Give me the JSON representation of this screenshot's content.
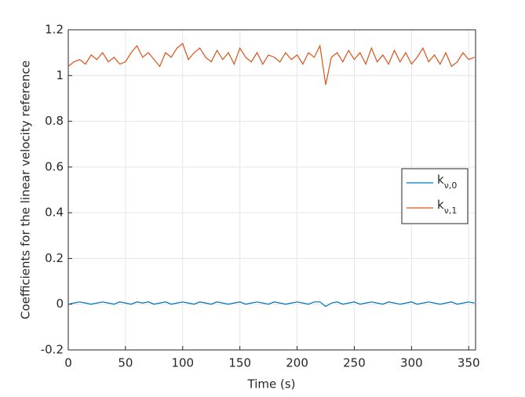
{
  "chart_data": {
    "type": "line",
    "xlabel": "Time (s)",
    "ylabel": "Coefficients for the linear velocity reference",
    "x": [
      0,
      5,
      10,
      15,
      20,
      25,
      30,
      35,
      40,
      45,
      50,
      55,
      60,
      65,
      70,
      75,
      80,
      85,
      90,
      95,
      100,
      105,
      110,
      115,
      120,
      125,
      130,
      135,
      140,
      145,
      150,
      155,
      160,
      165,
      170,
      175,
      180,
      185,
      190,
      195,
      200,
      205,
      210,
      215,
      220,
      225,
      230,
      235,
      240,
      245,
      250,
      255,
      260,
      265,
      270,
      275,
      280,
      285,
      290,
      295,
      300,
      305,
      310,
      315,
      320,
      325,
      330,
      335,
      340,
      345,
      350,
      355
    ],
    "series": [
      {
        "name": "kν,0",
        "color": "#0072bd",
        "values": [
          0,
          0.005,
          0.01,
          0.005,
          0,
          0.005,
          0.01,
          0.005,
          0,
          0.01,
          0.005,
          0,
          0.01,
          0.005,
          0.01,
          0,
          0.005,
          0.01,
          0,
          0.005,
          0.01,
          0.005,
          0,
          0.01,
          0.005,
          0,
          0.01,
          0.005,
          0,
          0.005,
          0.01,
          0,
          0.005,
          0.01,
          0.005,
          0,
          0.01,
          0.005,
          0,
          0.005,
          0.01,
          0.005,
          0,
          0.01,
          0.01,
          -0.01,
          0.005,
          0.01,
          0,
          0.005,
          0.01,
          0,
          0.005,
          0.01,
          0.005,
          0,
          0.01,
          0.005,
          0,
          0.005,
          0.01,
          0,
          0.005,
          0.01,
          0.005,
          0,
          0.005,
          0.01,
          0,
          0.005,
          0.01,
          0.005
        ]
      },
      {
        "name": "kν,1",
        "color": "#d95319",
        "values": [
          1.04,
          1.06,
          1.07,
          1.05,
          1.09,
          1.07,
          1.1,
          1.06,
          1.08,
          1.05,
          1.06,
          1.1,
          1.13,
          1.08,
          1.1,
          1.07,
          1.04,
          1.1,
          1.08,
          1.12,
          1.14,
          1.07,
          1.1,
          1.12,
          1.08,
          1.06,
          1.11,
          1.07,
          1.1,
          1.05,
          1.12,
          1.08,
          1.06,
          1.1,
          1.05,
          1.09,
          1.08,
          1.06,
          1.1,
          1.07,
          1.09,
          1.05,
          1.1,
          1.08,
          1.13,
          0.96,
          1.08,
          1.1,
          1.06,
          1.11,
          1.07,
          1.1,
          1.05,
          1.12,
          1.06,
          1.09,
          1.05,
          1.11,
          1.06,
          1.1,
          1.05,
          1.08,
          1.12,
          1.06,
          1.09,
          1.05,
          1.1,
          1.04,
          1.06,
          1.1,
          1.07,
          1.08
        ]
      }
    ],
    "xlim": [
      0,
      356
    ],
    "xticks": [
      0,
      50,
      100,
      150,
      200,
      250,
      300,
      350
    ],
    "ylim": [
      -0.2,
      1.2
    ],
    "yticks": [
      -0.2,
      0,
      0.2,
      0.4,
      0.6,
      0.8,
      1,
      1.2
    ],
    "grid": true,
    "legend": "east"
  }
}
